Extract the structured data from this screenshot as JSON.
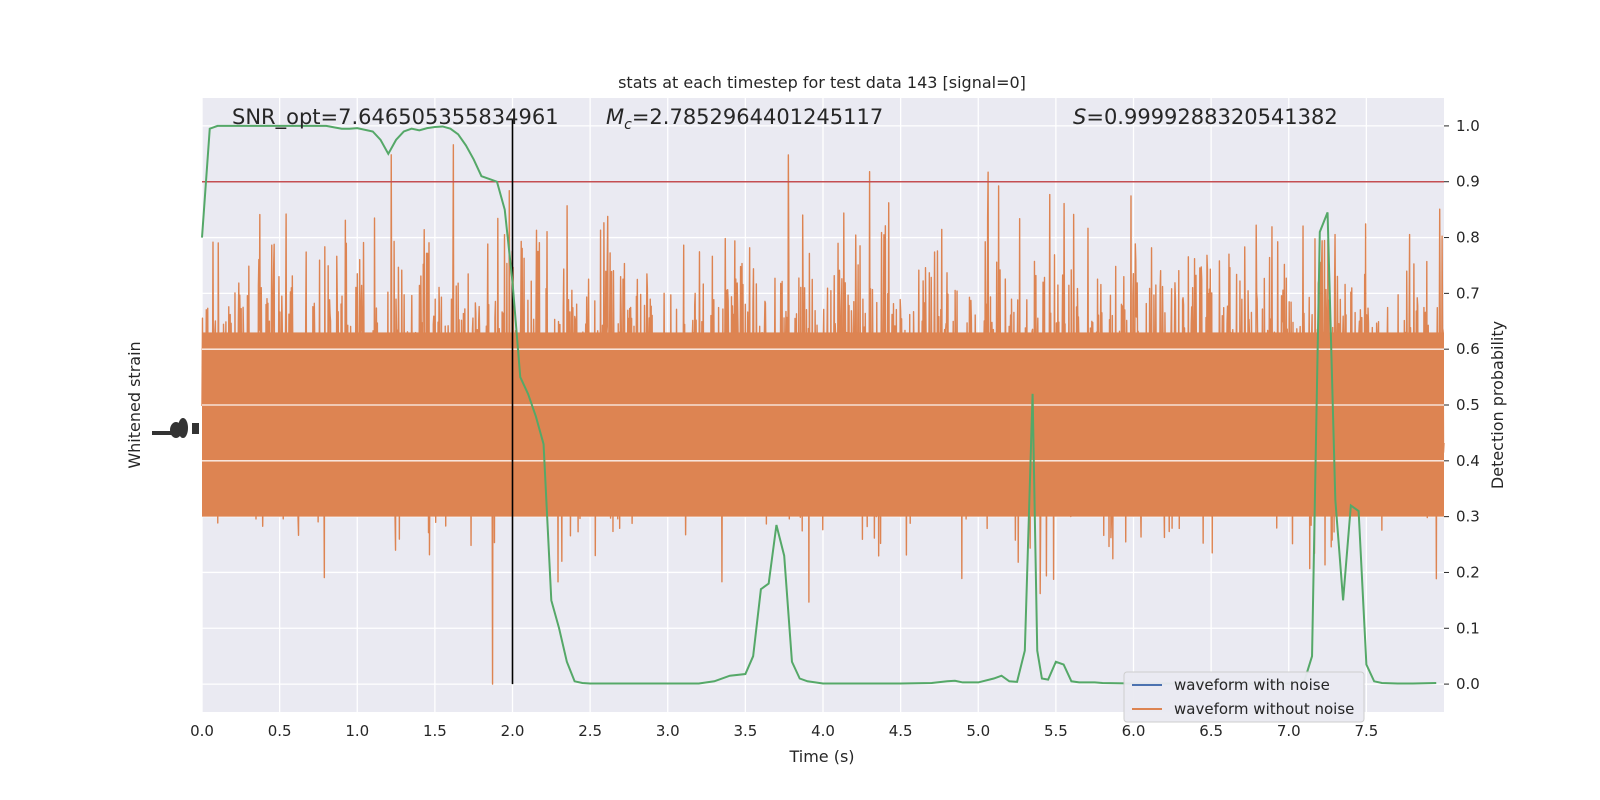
{
  "chart_data": {
    "type": "line",
    "title": "stats at each timestep for test data 143 [signal=0]",
    "xlabel": "Time (s)",
    "ylabel_left": "Whitened strain",
    "ylabel_right": "Detection probability",
    "xlim": [
      0,
      8
    ],
    "ylim_right": [
      -0.05,
      1.05
    ],
    "x_ticks": [
      "0.0",
      "0.5",
      "1.0",
      "1.5",
      "2.0",
      "2.5",
      "3.0",
      "3.5",
      "4.0",
      "4.5",
      "5.0",
      "5.5",
      "6.0",
      "6.5",
      "7.0",
      "7.5"
    ],
    "y_ticks_right": [
      "0.0",
      "0.1",
      "0.2",
      "0.3",
      "0.4",
      "0.5",
      "0.6",
      "0.7",
      "0.8",
      "0.9",
      "1.0"
    ],
    "grid": true,
    "annotations": {
      "snr": "SNR_opt=7.646505355834961",
      "mc_symbol": "M",
      "mc_sub": "c",
      "mc_value": "=2.7852964401245117",
      "s_symbol": "S",
      "s_value": "=0.9999288320541382"
    },
    "threshold": 0.9,
    "vertical_marker_time": 2.0,
    "legend": {
      "placement": "lower-right",
      "entries": [
        "waveform with noise",
        "waveform without noise"
      ]
    },
    "colors": {
      "background": "#eaeaf2",
      "grid": "#ffffff",
      "waveform_with_noise": "#4c72b0",
      "waveform_without_noise": "#dd8452",
      "detection_probability": "#55a868",
      "threshold": "#c44e52",
      "marker": "#000000"
    },
    "series": [
      {
        "name": "Detection probability",
        "x": [
          0.0,
          0.05,
          0.1,
          0.2,
          0.3,
          0.4,
          0.5,
          0.6,
          0.7,
          0.8,
          0.9,
          0.95,
          1.0,
          1.1,
          1.15,
          1.2,
          1.25,
          1.3,
          1.35,
          1.4,
          1.45,
          1.5,
          1.55,
          1.6,
          1.65,
          1.7,
          1.75,
          1.8,
          1.85,
          1.9,
          1.95,
          2.0,
          2.05,
          2.1,
          2.15,
          2.2,
          2.25,
          2.3,
          2.35,
          2.4,
          2.45,
          2.5,
          2.55,
          2.6,
          2.65,
          2.7,
          2.8,
          3.0,
          3.2,
          3.3,
          3.4,
          3.5,
          3.55,
          3.6,
          3.65,
          3.7,
          3.75,
          3.8,
          3.85,
          3.9,
          4.0,
          4.1,
          4.2,
          4.5,
          4.7,
          4.8,
          4.85,
          4.9,
          5.0,
          5.1,
          5.15,
          5.2,
          5.25,
          5.3,
          5.35,
          5.38,
          5.41,
          5.45,
          5.5,
          5.55,
          5.6,
          5.65,
          5.7,
          5.75,
          5.8,
          6.0,
          6.5,
          7.0,
          7.1,
          7.15,
          7.2,
          7.25,
          7.3,
          7.35,
          7.4,
          7.45,
          7.5,
          7.55,
          7.6,
          7.7,
          7.8,
          7.95
        ],
        "y": [
          0.8,
          0.995,
          1.0,
          1.0,
          1.0,
          1.0,
          1.0,
          1.0,
          1.0,
          1.0,
          0.995,
          0.995,
          0.996,
          0.99,
          0.975,
          0.95,
          0.975,
          0.99,
          0.995,
          0.992,
          0.996,
          0.998,
          0.999,
          0.995,
          0.985,
          0.965,
          0.94,
          0.91,
          0.905,
          0.9,
          0.85,
          0.72,
          0.55,
          0.52,
          0.48,
          0.43,
          0.15,
          0.1,
          0.04,
          0.005,
          0.002,
          0.001,
          0.001,
          0.001,
          0.001,
          0.001,
          0.001,
          0.001,
          0.001,
          0.005,
          0.015,
          0.018,
          0.05,
          0.17,
          0.18,
          0.285,
          0.23,
          0.04,
          0.01,
          0.005,
          0.001,
          0.001,
          0.001,
          0.001,
          0.002,
          0.005,
          0.006,
          0.003,
          0.003,
          0.01,
          0.015,
          0.005,
          0.004,
          0.06,
          0.52,
          0.06,
          0.01,
          0.008,
          0.04,
          0.035,
          0.005,
          0.003,
          0.003,
          0.003,
          0.002,
          0.001,
          0.001,
          0.001,
          0.005,
          0.05,
          0.81,
          0.845,
          0.33,
          0.15,
          0.32,
          0.31,
          0.035,
          0.005,
          0.002,
          0.001,
          0.001,
          0.002
        ]
      }
    ]
  }
}
